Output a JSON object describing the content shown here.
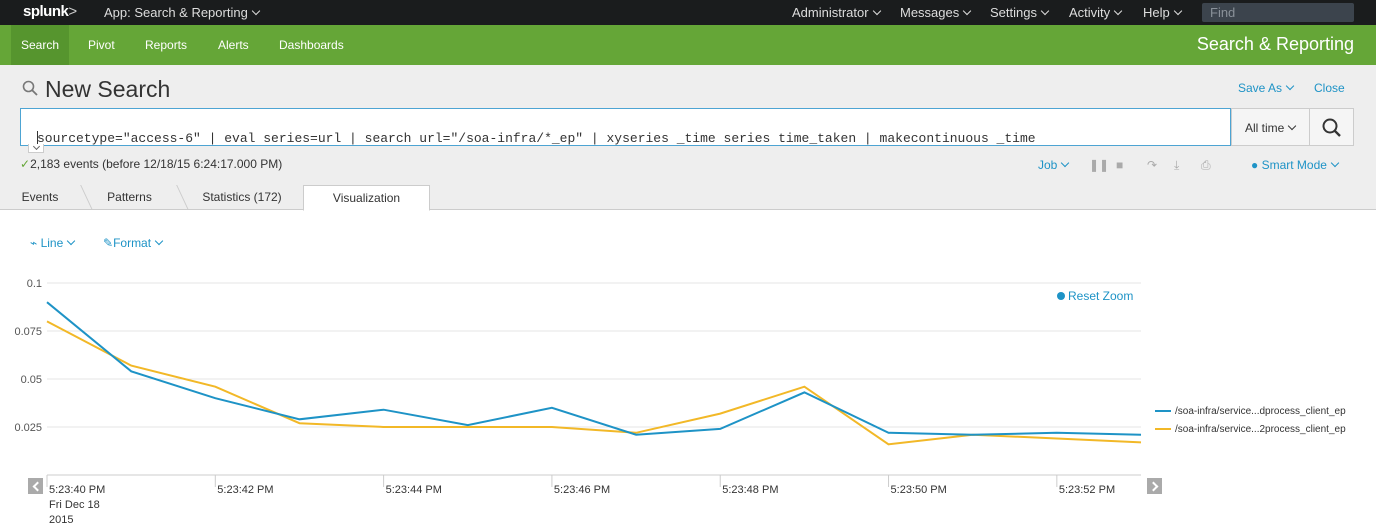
{
  "topbar": {
    "logo": "splunk",
    "logo_suffix": ">",
    "app_menu": "App: Search & Reporting",
    "menus": [
      "Administrator",
      "Messages",
      "Settings",
      "Activity",
      "Help"
    ],
    "find_placeholder": "Find"
  },
  "navbar": {
    "items": [
      "Search",
      "Pivot",
      "Reports",
      "Alerts",
      "Dashboards"
    ],
    "active": "Search",
    "app_title": "Search & Reporting"
  },
  "search": {
    "title": "New Search",
    "save_as": "Save As",
    "close": "Close",
    "query": "sourcetype=\"access-6\" | eval series=url | search url=\"/soa-infra/*_ep\" | xyseries _time series time_taken | makecontinuous _time",
    "time_range": "All time",
    "status": "2,183 events (before 12/18/15 6:24:17.000 PM)",
    "job_label": "Job",
    "mode_label": "Smart Mode"
  },
  "tabs": [
    "Events",
    "Patterns",
    "Statistics (172)",
    "Visualization"
  ],
  "active_tab": "Visualization",
  "viz": {
    "type_label": "Line",
    "format_label": "Format",
    "reset_zoom": "Reset Zoom"
  },
  "colors": {
    "series1": "#1e93c6",
    "series2": "#f2b827",
    "accent": "#65a637"
  },
  "chart_data": {
    "type": "line",
    "x": [
      "5:23:40 PM",
      "5:23:41 PM",
      "5:23:42 PM",
      "5:23:43 PM",
      "5:23:44 PM",
      "5:23:45 PM",
      "5:23:46 PM",
      "5:23:47 PM",
      "5:23:48 PM",
      "5:23:49 PM",
      "5:23:50 PM",
      "5:23:51 PM",
      "5:23:52 PM",
      "5:23:53 PM"
    ],
    "x_tick_labels": [
      "5:23:40 PM",
      "5:23:42 PM",
      "5:23:44 PM",
      "5:23:46 PM",
      "5:23:48 PM",
      "5:23:50 PM",
      "5:23:52 PM"
    ],
    "x_first_sublabel": [
      "Fri Dec 18",
      "2015"
    ],
    "y_ticks": [
      0.025,
      0.05,
      0.075,
      0.1
    ],
    "y_tick_labels": [
      "0.025",
      "0.05",
      "0.075",
      "0.1"
    ],
    "ylim": [
      0,
      0.1
    ],
    "grid": true,
    "legend_position": "right",
    "series": [
      {
        "name": "/soa-infra/service...dprocess_client_ep",
        "values": [
          0.09,
          0.054,
          0.04,
          0.029,
          0.034,
          0.026,
          0.035,
          0.021,
          0.024,
          0.043,
          0.022,
          0.021,
          0.022,
          0.021
        ]
      },
      {
        "name": "/soa-infra/service...2process_client_ep",
        "values": [
          0.08,
          0.057,
          0.046,
          0.027,
          0.025,
          0.025,
          0.025,
          0.022,
          0.032,
          0.046,
          0.016,
          0.021,
          0.019,
          0.017
        ]
      }
    ]
  }
}
